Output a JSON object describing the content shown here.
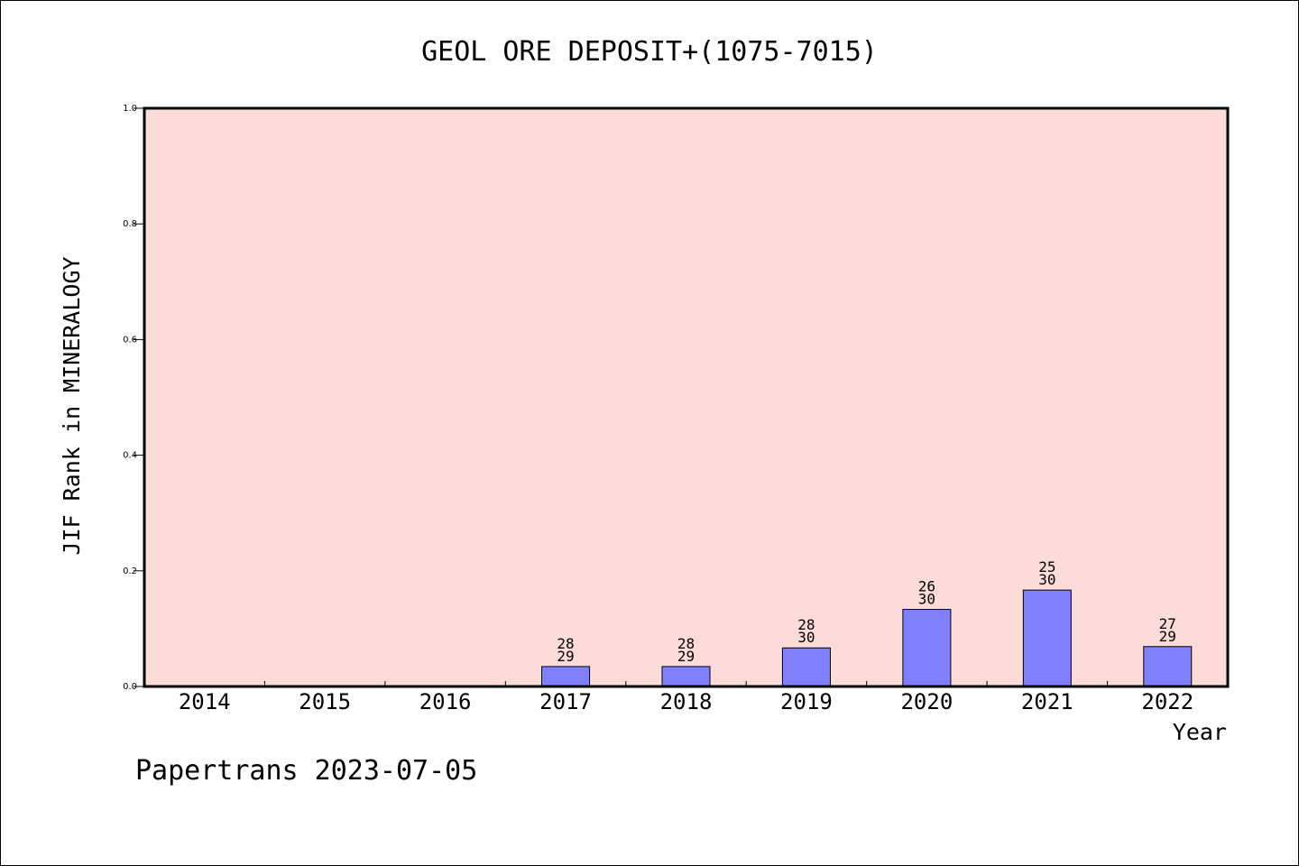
{
  "chart_data": {
    "type": "bar",
    "title": "GEOL ORE DEPOSIT+(1075-7015)",
    "ylabel": "JIF Rank in MINERALOGY",
    "xlabel": "Year",
    "categories": [
      "2014",
      "2015",
      "2016",
      "2017",
      "2018",
      "2019",
      "2020",
      "2021",
      "2022"
    ],
    "values": [
      0,
      0,
      0,
      0.0345,
      0.0345,
      0.0667,
      0.1333,
      0.1667,
      0.069
    ],
    "bar_labels": [
      {
        "top": "",
        "bottom": ""
      },
      {
        "top": "",
        "bottom": ""
      },
      {
        "top": "",
        "bottom": ""
      },
      {
        "top": "28",
        "bottom": "29"
      },
      {
        "top": "28",
        "bottom": "29"
      },
      {
        "top": "28",
        "bottom": "30"
      },
      {
        "top": "26",
        "bottom": "30"
      },
      {
        "top": "25",
        "bottom": "30"
      },
      {
        "top": "27",
        "bottom": "29"
      }
    ],
    "yticks": [
      "0.0",
      "0.2",
      "0.4",
      "0.6",
      "0.8",
      "1.0"
    ],
    "ylim": [
      0,
      1
    ],
    "grid": false,
    "colors": {
      "plot_background": "#fddbd8",
      "bar_fill": "#8080ff",
      "bar_stroke": "#000000"
    }
  },
  "footer": "Papertrans 2023-07-05"
}
